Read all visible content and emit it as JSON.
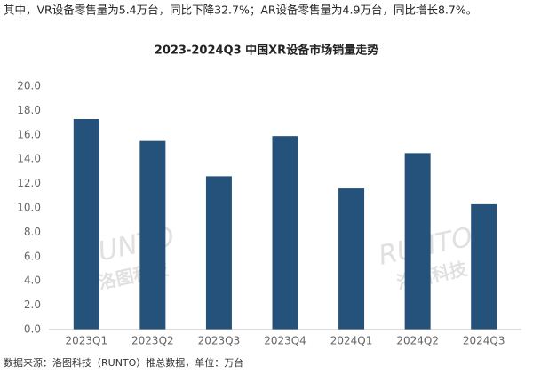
{
  "chart_data": {
    "type": "bar",
    "intro": "其中，VR设备零售量为5.4万台，同比下降32.7%；AR设备零售量为4.9万台，同比增长8.7%。",
    "title": "2023-2024Q3 中国XR设备市场销量走势",
    "categories": [
      "2023Q1",
      "2023Q2",
      "2023Q3",
      "2023Q4",
      "2024Q1",
      "2024Q2",
      "2024Q3"
    ],
    "values": [
      17.3,
      15.5,
      12.6,
      15.9,
      11.6,
      14.5,
      10.3
    ],
    "color": "#24527a",
    "ylim": [
      0,
      20
    ],
    "yticks": [
      {
        "value": 0,
        "label": "0.0"
      },
      {
        "value": 2,
        "label": "2.0"
      },
      {
        "value": 4,
        "label": "4.0"
      },
      {
        "value": 6,
        "label": "6.0"
      },
      {
        "value": 8,
        "label": "8.0"
      },
      {
        "value": 10,
        "label": "10.0"
      },
      {
        "value": 12,
        "label": "12.0"
      },
      {
        "value": 14,
        "label": "14.0"
      },
      {
        "value": 16,
        "label": "16.0"
      },
      {
        "value": 18,
        "label": "18.0"
      },
      {
        "value": 20,
        "label": "20.0"
      }
    ],
    "grid": false,
    "watermark": [
      "RUNTO",
      "洛图科技"
    ],
    "source": "数据来源：洛图科技（RUNTO）推总数据，单位：万台"
  }
}
